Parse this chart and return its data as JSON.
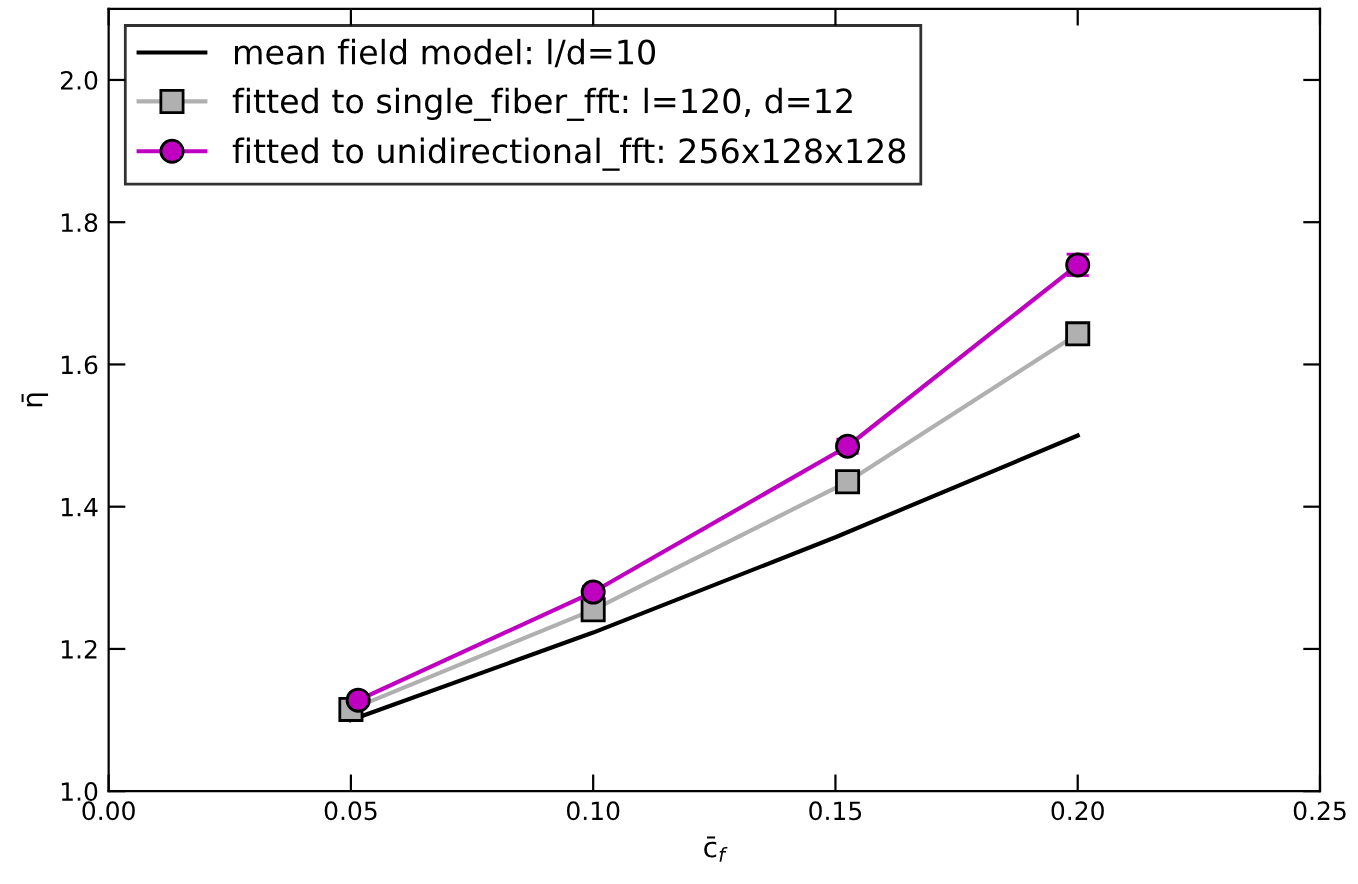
{
  "chart_data": {
    "type": "line",
    "xlabel": "c̄$_{f}$",
    "ylabel": "η̄",
    "xlim": [
      0,
      0.25
    ],
    "ylim": [
      1.0,
      2.1
    ],
    "xticks": [
      {
        "value": 0,
        "label": "0.00"
      },
      {
        "value": 0.05,
        "label": "0.05"
      },
      {
        "value": 0.1,
        "label": "0.10"
      },
      {
        "value": 0.15,
        "label": "0.15"
      },
      {
        "value": 0.2,
        "label": "0.20"
      },
      {
        "value": 0.25,
        "label": "0.25"
      }
    ],
    "yticks": [
      {
        "value": 1.0,
        "label": "1.0"
      },
      {
        "value": 1.2,
        "label": "1.2"
      },
      {
        "value": 1.4,
        "label": "1.4"
      },
      {
        "value": 1.6,
        "label": "1.6"
      },
      {
        "value": 1.8,
        "label": "1.8"
      },
      {
        "value": 2.0,
        "label": "2.0"
      }
    ],
    "grid": false,
    "legend": "top left",
    "series": [
      {
        "name": "mean field model: l/d=10",
        "color": "#000000",
        "marker": "none",
        "x": [
          0.05,
          0.1,
          0.15,
          0.2
        ],
        "values": [
          1.1,
          1.223,
          1.357,
          1.5
        ]
      },
      {
        "name": "fitted to single_fiber_fft: l=120, d=12",
        "color": "#b0b0b0",
        "marker": "square",
        "x": [
          0.05,
          0.1,
          0.1525,
          0.2
        ],
        "values": [
          1.115,
          1.255,
          1.435,
          1.643
        ]
      },
      {
        "name": "fitted to unidirectional_fft: 256x128x128",
        "color": "#c000c0",
        "marker": "circle",
        "x": [
          0.0515,
          0.1,
          0.1525,
          0.2
        ],
        "values": [
          1.128,
          1.28,
          1.485,
          1.74
        ],
        "errors": [
          0.005,
          0.008,
          0.01,
          0.015
        ]
      }
    ]
  }
}
